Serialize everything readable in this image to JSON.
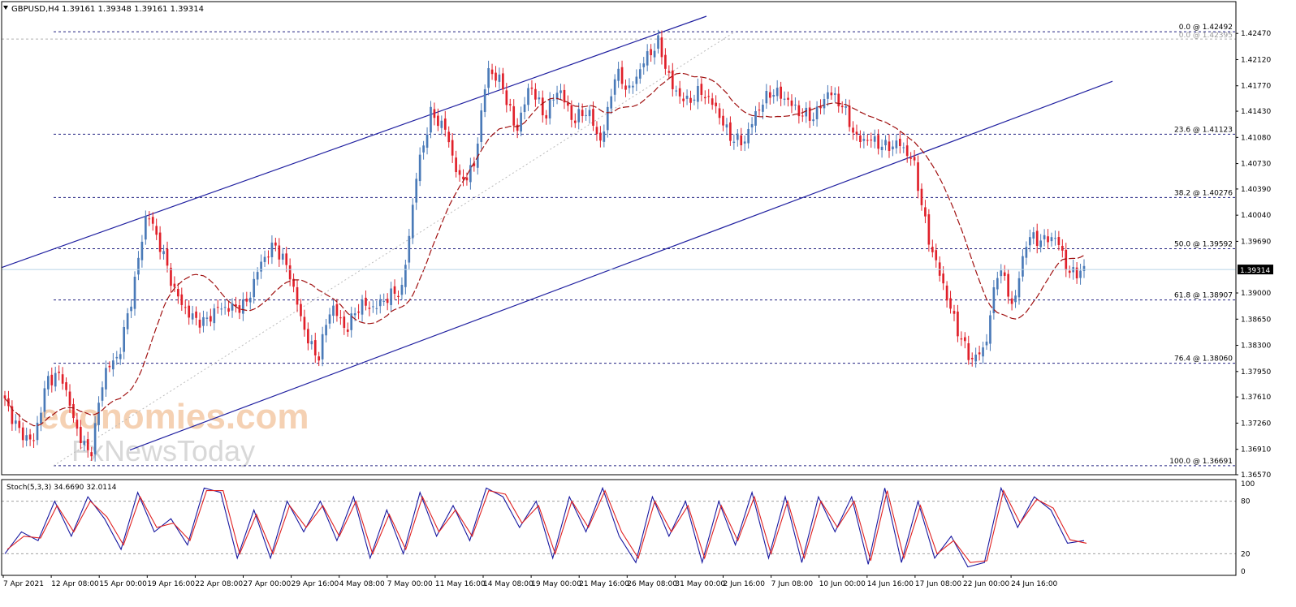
{
  "header": {
    "symbol": "GBPUSD,H4",
    "ohlc": "1.39161 1.39348 1.39161 1.39314"
  },
  "colors": {
    "bull": "#4a7ab8",
    "bear": "#e0202a",
    "ma": "#a01010",
    "channel": "#2020a0",
    "fib": "#202080",
    "stoch_main": "#1818a0",
    "stoch_signal": "#e02020",
    "grid": "#a0a0a0",
    "price_line": "#b8d4e8"
  },
  "watermark": {
    "brand": "economies.com",
    "sub": "FxNewsToday"
  },
  "chart_data": [
    {
      "type": "candlestick",
      "title": "GBPUSD,H4",
      "ylim": [
        1.3657,
        1.427
      ],
      "y_ticks": [
        "1.42470",
        "1.42120",
        "1.41770",
        "1.41430",
        "1.41080",
        "1.40730",
        "1.40390",
        "1.40040",
        "1.39690",
        "1.39314",
        "1.39000",
        "1.38650",
        "1.38300",
        "1.37950",
        "1.37610",
        "1.37260",
        "1.36910",
        "1.36570"
      ],
      "current_price": "1.39314",
      "x_labels": [
        "7 Apr 2021",
        "12 Apr 08:00",
        "15 Apr 00:00",
        "19 Apr 16:00",
        "22 Apr 08:00",
        "27 Apr 00:00",
        "29 Apr 16:00",
        "4 May 08:00",
        "7 May 00:00",
        "11 May 16:00",
        "14 May 08:00",
        "19 May 00:00",
        "21 May 16:00",
        "26 May 08:00",
        "31 May 00:00",
        "2 Jun 16:00",
        "7 Jun 08:00",
        "10 Jun 00:00",
        "14 Jun 16:00",
        "17 Jun 08:00",
        "22 Jun 00:00",
        "24 Jun 16:00"
      ],
      "fib_levels": [
        {
          "label": "0.0 @ 1.42492",
          "value": 1.42492
        },
        {
          "label": "23.6 @ 1.41123",
          "value": 1.41123
        },
        {
          "label": "38.2 @ 1.40276",
          "value": 1.40276
        },
        {
          "label": "50.0 @ 1.39592",
          "value": 1.39592
        },
        {
          "label": "61.8 @ 1.38907",
          "value": 1.38907
        },
        {
          "label": "76.4 @ 1.38060",
          "value": 1.3806
        },
        {
          "label": "100.0 @ 1.36691",
          "value": 1.36691
        }
      ],
      "fib_extra_label": "0.0 @ 1.42395",
      "swing_points": [
        1.3755,
        1.3715,
        1.37,
        1.3785,
        1.379,
        1.372,
        1.368,
        1.3795,
        1.3815,
        1.39,
        1.401,
        1.396,
        1.39,
        1.387,
        1.386,
        1.388,
        1.388,
        1.3885,
        1.394,
        1.3965,
        1.393,
        1.3855,
        1.381,
        1.3885,
        1.385,
        1.3885,
        1.388,
        1.3895,
        1.3905,
        1.406,
        1.414,
        1.412,
        1.405,
        1.4065,
        1.42,
        1.418,
        1.4115,
        1.418,
        1.4135,
        1.4175,
        1.413,
        1.4145,
        1.41,
        1.4195,
        1.417,
        1.421,
        1.4235,
        1.4175,
        1.4155,
        1.417,
        1.415,
        1.411,
        1.41,
        1.4145,
        1.417,
        1.416,
        1.414,
        1.4135,
        1.417,
        1.415,
        1.4105,
        1.4105,
        1.4095,
        1.41,
        1.4075,
        1.3975,
        1.3915,
        1.3855,
        1.381,
        1.3825,
        1.394,
        1.388,
        1.3975,
        1.397,
        1.3975,
        1.3925,
        1.3931
      ]
    },
    {
      "type": "line",
      "title": "Stoch(5,3,3) 34.6690 32.0114",
      "ylim": [
        0,
        100
      ],
      "y_ticks": [
        "100",
        "80",
        "20",
        "0"
      ],
      "levels": [
        80,
        20
      ],
      "series": [
        {
          "name": "34.6690",
          "values": [
            20,
            45,
            35,
            80,
            40,
            85,
            60,
            25,
            90,
            45,
            60,
            30,
            95,
            90,
            15,
            70,
            15,
            80,
            45,
            80,
            35,
            85,
            15,
            70,
            20,
            90,
            40,
            75,
            35,
            95,
            85,
            50,
            80,
            15,
            85,
            45,
            95,
            40,
            10,
            85,
            40,
            80,
            10,
            80,
            30,
            90,
            15,
            85,
            10,
            85,
            45,
            85,
            8,
            95,
            10,
            80,
            15,
            40,
            5,
            10,
            95,
            50,
            85,
            70,
            32,
            35
          ]
        },
        {
          "name": "32.0114",
          "values": [
            25,
            40,
            38,
            75,
            45,
            80,
            62,
            30,
            85,
            50,
            55,
            35,
            92,
            92,
            20,
            65,
            20,
            75,
            50,
            75,
            40,
            80,
            20,
            65,
            25,
            85,
            45,
            70,
            40,
            92,
            88,
            55,
            75,
            20,
            80,
            50,
            92,
            45,
            15,
            80,
            45,
            75,
            15,
            75,
            35,
            85,
            20,
            80,
            15,
            80,
            50,
            80,
            12,
            92,
            15,
            75,
            20,
            35,
            10,
            12,
            92,
            55,
            82,
            72,
            36,
            32
          ]
        }
      ]
    }
  ]
}
